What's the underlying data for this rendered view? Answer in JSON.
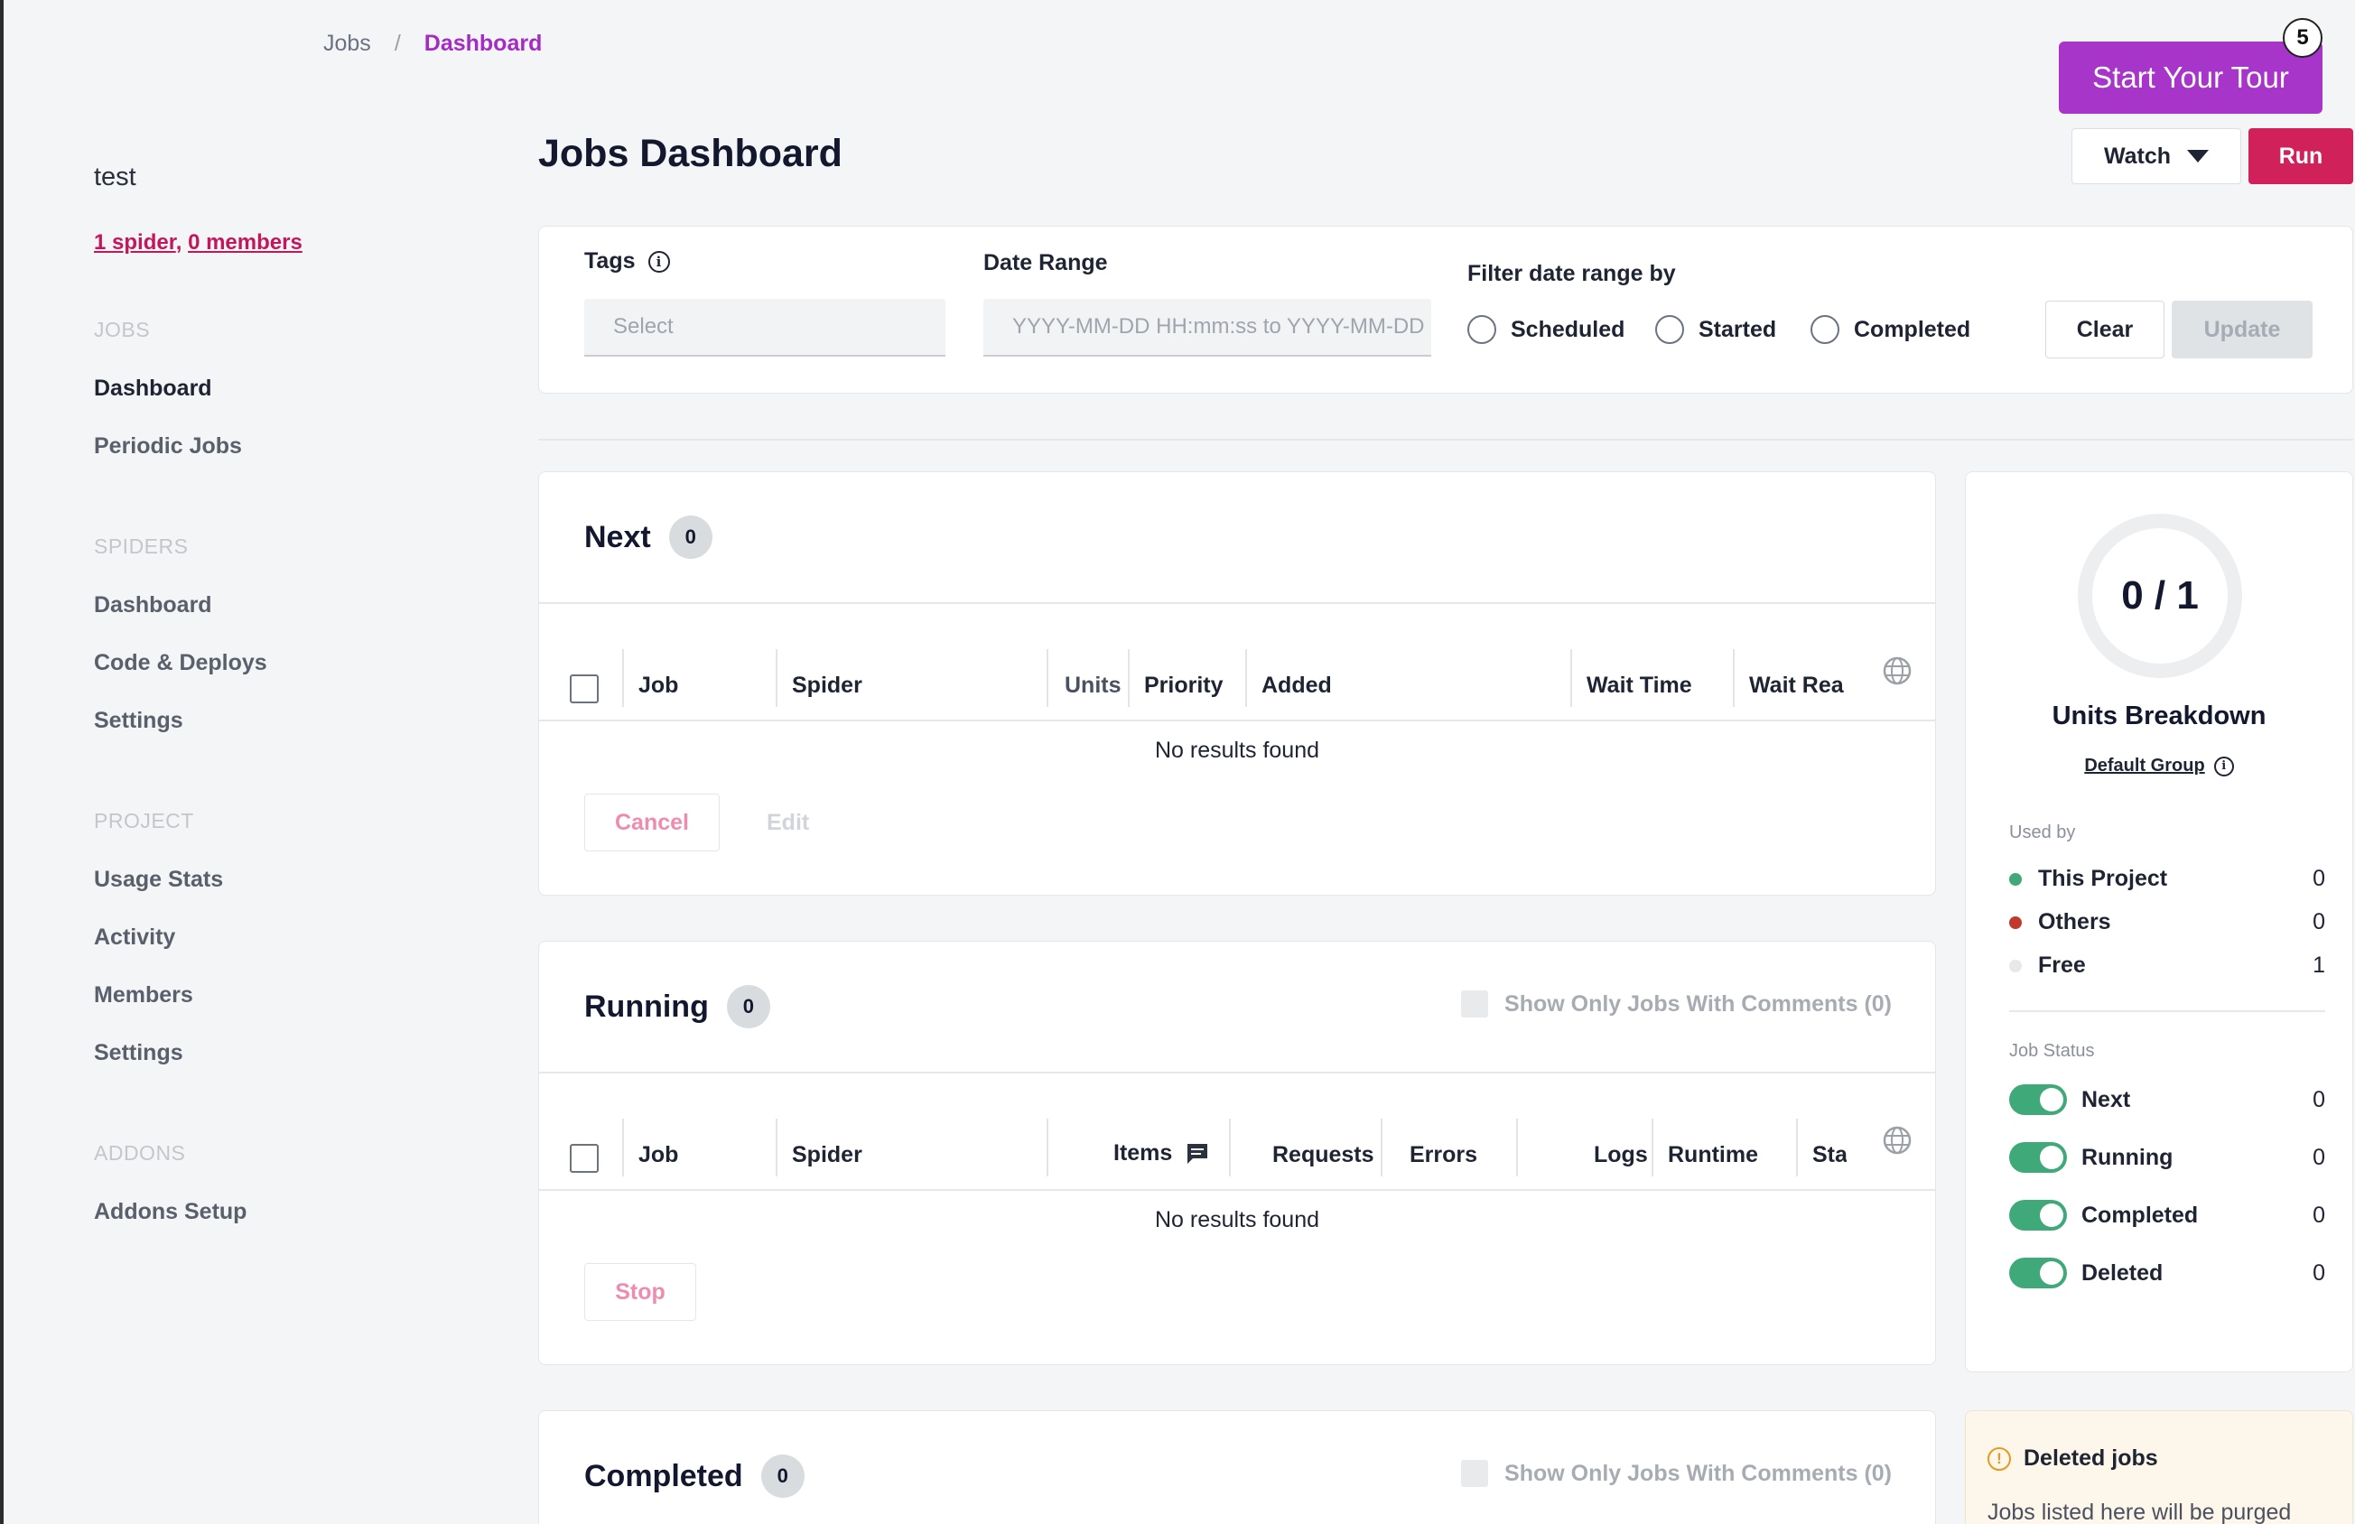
{
  "breadcrumb": {
    "parent": "Jobs",
    "separator": "/",
    "current": "Dashboard"
  },
  "sidebar": {
    "project_name": "test",
    "spiders_link": "1 spider",
    "comma": ",",
    "members_link": "0 members",
    "sections": [
      {
        "title": "JOBS",
        "items": [
          "Dashboard",
          "Periodic Jobs"
        ]
      },
      {
        "title": "SPIDERS",
        "items": [
          "Dashboard",
          "Code & Deploys",
          "Settings"
        ]
      },
      {
        "title": "PROJECT",
        "items": [
          "Usage Stats",
          "Activity",
          "Members",
          "Settings"
        ]
      },
      {
        "title": "ADDONS",
        "items": [
          "Addons Setup"
        ]
      }
    ]
  },
  "header": {
    "title": "Jobs Dashboard",
    "tour_label": "Start Your Tour",
    "tour_badge": "5",
    "watch_label": "Watch",
    "run_label": "Run"
  },
  "filters": {
    "tags_label": "Tags",
    "tags_placeholder": "Select",
    "date_label": "Date Range",
    "date_placeholder": "YYYY-MM-DD HH:mm:ss to YYYY-MM-DD HH:mm:ss",
    "filter_by_label": "Filter date range by",
    "options": [
      "Scheduled",
      "Started",
      "Completed"
    ],
    "clear_label": "Clear",
    "update_label": "Update"
  },
  "next": {
    "title": "Next",
    "count": "0",
    "columns": [
      "Job",
      "Spider",
      "Units",
      "Priority",
      "Added",
      "Wait Time",
      "Wait Rea"
    ],
    "empty_text": "No results found",
    "cancel_label": "Cancel",
    "edit_label": "Edit"
  },
  "running": {
    "title": "Running",
    "count": "0",
    "comment_filter": "Show Only Jobs With Comments (0)",
    "columns": [
      "Job",
      "Spider",
      "Items",
      "Requests",
      "Errors",
      "Logs",
      "Runtime",
      "Sta"
    ],
    "empty_text": "No results found",
    "stop_label": "Stop"
  },
  "completed": {
    "title": "Completed",
    "count": "0",
    "comment_filter": "Show Only Jobs With Comments (0)"
  },
  "units": {
    "ratio": "0 / 1",
    "title": "Units Breakdown",
    "group_link": "Default Group",
    "used_by_caption": "Used by",
    "used_by": [
      {
        "label": "This Project",
        "value": "0",
        "color": "#3fa97a"
      },
      {
        "label": "Others",
        "value": "0",
        "color": "#c0392b"
      },
      {
        "label": "Free",
        "value": "1",
        "color": "#e6e8ea"
      }
    ],
    "job_status_caption": "Job Status",
    "job_status": [
      {
        "label": "Next",
        "value": "0"
      },
      {
        "label": "Running",
        "value": "0"
      },
      {
        "label": "Completed",
        "value": "0"
      },
      {
        "label": "Deleted",
        "value": "0"
      }
    ]
  },
  "deleted_info": {
    "title": "Deleted jobs",
    "text": "Jobs listed here will be purged"
  },
  "colors": {
    "accent": "#a735c9",
    "run": "#d1215b",
    "toggle_on": "#3fa97a"
  }
}
